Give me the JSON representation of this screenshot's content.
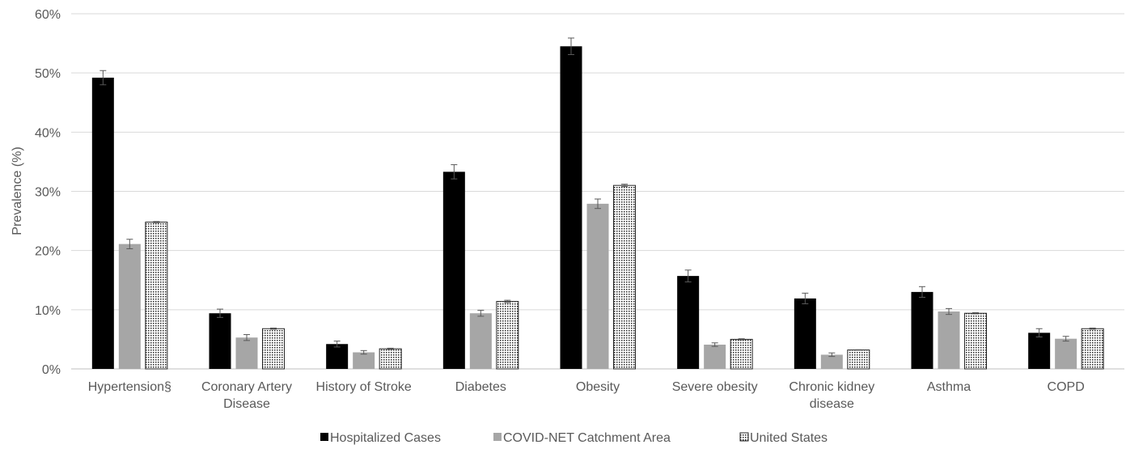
{
  "chart_data": {
    "type": "bar",
    "title": "",
    "xlabel": "",
    "ylabel": "Prevalence (%)",
    "ylim": [
      0,
      60
    ],
    "yticks": [
      0,
      10,
      20,
      30,
      40,
      50,
      60
    ],
    "ytick_labels": [
      "0%",
      "10%",
      "20%",
      "30%",
      "40%",
      "50%",
      "60%"
    ],
    "grid": true,
    "legend_position": "bottom",
    "categories": [
      "Hypertension§",
      "Coronary Artery Disease",
      "History of Stroke",
      "Diabetes",
      "Obesity",
      "Severe obesity",
      "Chronic kidney disease",
      "Asthma",
      "COPD"
    ],
    "category_lines": [
      [
        "Hypertension§"
      ],
      [
        "Coronary Artery",
        "Disease"
      ],
      [
        "History of Stroke"
      ],
      [
        "Diabetes"
      ],
      [
        "Obesity"
      ],
      [
        "Severe obesity"
      ],
      [
        "Chronic kidney",
        "disease"
      ],
      [
        "Asthma"
      ],
      [
        "COPD"
      ]
    ],
    "series": [
      {
        "name": "Hospitalized Cases",
        "color": "#000000",
        "pattern": "solid",
        "values": [
          49.2,
          9.4,
          4.2,
          33.3,
          54.5,
          15.7,
          11.9,
          13.0,
          6.1
        ],
        "error": [
          1.2,
          0.7,
          0.5,
          1.2,
          1.4,
          1.0,
          0.9,
          0.9,
          0.7
        ]
      },
      {
        "name": "COVID-NET Catchment Area",
        "color": "#a6a6a6",
        "pattern": "solid",
        "values": [
          21.1,
          5.3,
          2.8,
          9.4,
          27.9,
          4.1,
          2.4,
          9.7,
          5.1
        ],
        "error": [
          0.8,
          0.5,
          0.3,
          0.5,
          0.8,
          0.3,
          0.3,
          0.5,
          0.4
        ]
      },
      {
        "name": "United States",
        "color": "#ffffff",
        "pattern": "dotted",
        "values": [
          24.8,
          6.8,
          3.4,
          11.4,
          31.0,
          5.0,
          3.2,
          9.4,
          6.8
        ],
        "error": [
          0.1,
          0.1,
          0.1,
          0.2,
          0.2,
          0.1,
          0.05,
          0.1,
          0.1
        ]
      }
    ]
  }
}
